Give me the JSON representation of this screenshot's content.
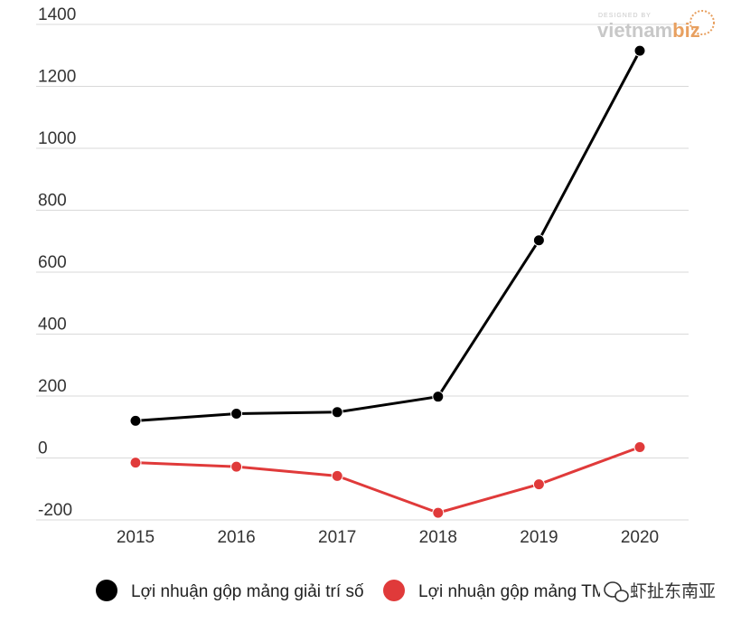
{
  "chart_data": {
    "type": "line",
    "categories": [
      "2015",
      "2016",
      "2017",
      "2018",
      "2019",
      "2020"
    ],
    "series": [
      {
        "name": "Lợi nhuận gộp mảng giải trí số",
        "values": [
          120,
          143,
          148,
          198,
          703,
          1315
        ],
        "color": "#000000"
      },
      {
        "name": "Lợi nhuận gộp mảng TMĐT",
        "values": [
          -15,
          -28,
          -58,
          -177,
          -85,
          35
        ],
        "color": "#e03a3a"
      }
    ],
    "y_ticks": [
      "1400",
      "1200",
      "1000",
      "800",
      "600",
      "400",
      "200",
      "0",
      "-200"
    ],
    "ylim": [
      -200,
      1400
    ],
    "grid": true,
    "legend_position": "bottom",
    "title": "",
    "xlabel": "",
    "ylabel": ""
  },
  "legend": {
    "items": [
      {
        "label": "Lợi nhuận gộp mảng giải trí số",
        "color": "#000000"
      },
      {
        "label": "Lợi nhuận gộp mảng TMĐT",
        "color": "#e03a3a"
      }
    ]
  },
  "logo": {
    "top_text": "DESIGNED BY",
    "brand_main": "vietnam",
    "brand_accent": "biz",
    "main_color": "#c8c8c8",
    "accent_color": "#e8a060"
  },
  "watermark": {
    "text": "虾扯东南亚",
    "icon": "wechat-icon"
  }
}
